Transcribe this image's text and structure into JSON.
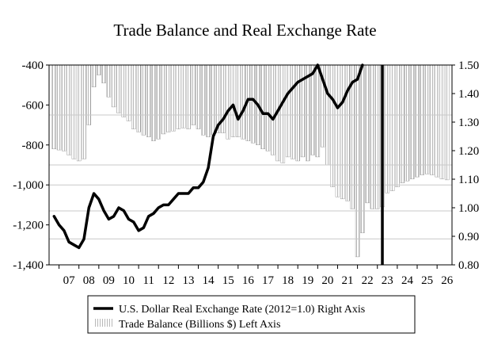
{
  "chart_data": {
    "type": "bar+line",
    "title": "Trade Balance and Real Exchange Rate",
    "x_labels": [
      "07",
      "08",
      "09",
      "10",
      "11",
      "12",
      "13",
      "14",
      "15",
      "16",
      "17",
      "18",
      "19",
      "20",
      "21",
      "22",
      "23",
      "24",
      "25",
      "26"
    ],
    "left_axis": {
      "min": -1400,
      "max": -400,
      "ticks": [
        -400,
        -600,
        -800,
        -1000,
        -1200,
        -1400
      ],
      "tick_labels": [
        "-400",
        "-600",
        "-800",
        "-1,000",
        "-1,200",
        "-1,400"
      ]
    },
    "right_axis": {
      "min": 0.8,
      "max": 1.5,
      "ticks": [
        1.5,
        1.4,
        1.3,
        1.2,
        1.1,
        1.0,
        0.9,
        0.8
      ],
      "tick_labels": [
        "1.50",
        "1.40",
        "1.30",
        "1.20",
        "1.10",
        "1.00",
        "0.90",
        "0.80"
      ]
    },
    "gridlines": [
      -650,
      -900,
      -1000,
      -1130,
      -1270
    ],
    "forecast_marker_x": 2023.25,
    "bar_series": {
      "name": "Trade Balance (Billions $) Left Axis",
      "axis": "left",
      "start_year": 2006.75,
      "step": 0.25,
      "values": [
        -820,
        -825,
        -830,
        -850,
        -870,
        -880,
        -870,
        -700,
        -510,
        -450,
        -490,
        -560,
        -610,
        -640,
        -660,
        -680,
        -720,
        -735,
        -750,
        -760,
        -780,
        -770,
        -745,
        -735,
        -730,
        -720,
        -715,
        -720,
        -700,
        -720,
        -750,
        -760,
        -750,
        -740,
        -740,
        -770,
        -760,
        -760,
        -770,
        -780,
        -790,
        -800,
        -820,
        -830,
        -850,
        -880,
        -890,
        -860,
        -870,
        -880,
        -860,
        -880,
        -850,
        -860,
        -810,
        -900,
        -1010,
        -1060,
        -1070,
        -1080,
        -1120,
        -1360,
        -1240,
        -1090,
        -1120,
        -1120,
        -1110,
        -1040,
        -1030,
        -1010,
        -990,
        -980,
        -970,
        -960,
        -950,
        -945,
        -950,
        -960,
        -970,
        -975
      ]
    },
    "line_series": {
      "name": "U.S. Dollar Real Exchange Rate (2012=1.0) Right Axis",
      "axis": "right",
      "points": [
        [
          2006.75,
          0.97
        ],
        [
          2007.0,
          0.94
        ],
        [
          2007.25,
          0.92
        ],
        [
          2007.5,
          0.88
        ],
        [
          2007.75,
          0.87
        ],
        [
          2008.0,
          0.86
        ],
        [
          2008.25,
          0.89
        ],
        [
          2008.5,
          1.0
        ],
        [
          2008.75,
          1.05
        ],
        [
          2009.0,
          1.03
        ],
        [
          2009.25,
          0.99
        ],
        [
          2009.5,
          0.96
        ],
        [
          2009.75,
          0.97
        ],
        [
          2010.0,
          1.0
        ],
        [
          2010.25,
          0.99
        ],
        [
          2010.5,
          0.96
        ],
        [
          2010.75,
          0.95
        ],
        [
          2011.0,
          0.92
        ],
        [
          2011.25,
          0.93
        ],
        [
          2011.5,
          0.97
        ],
        [
          2011.75,
          0.98
        ],
        [
          2012.0,
          1.0
        ],
        [
          2012.25,
          1.01
        ],
        [
          2012.5,
          1.01
        ],
        [
          2012.75,
          1.03
        ],
        [
          2013.0,
          1.05
        ],
        [
          2013.25,
          1.05
        ],
        [
          2013.5,
          1.05
        ],
        [
          2013.75,
          1.07
        ],
        [
          2014.0,
          1.07
        ],
        [
          2014.25,
          1.09
        ],
        [
          2014.5,
          1.14
        ],
        [
          2014.75,
          1.25
        ],
        [
          2015.0,
          1.29
        ],
        [
          2015.25,
          1.31
        ],
        [
          2015.5,
          1.34
        ],
        [
          2015.75,
          1.36
        ],
        [
          2016.0,
          1.31
        ],
        [
          2016.25,
          1.34
        ],
        [
          2016.5,
          1.38
        ],
        [
          2016.75,
          1.38
        ],
        [
          2017.0,
          1.36
        ],
        [
          2017.25,
          1.33
        ],
        [
          2017.5,
          1.33
        ],
        [
          2017.75,
          1.31
        ],
        [
          2018.0,
          1.34
        ],
        [
          2018.25,
          1.37
        ],
        [
          2018.5,
          1.4
        ],
        [
          2018.75,
          1.42
        ],
        [
          2019.0,
          1.44
        ],
        [
          2019.25,
          1.45
        ],
        [
          2019.5,
          1.46
        ],
        [
          2019.75,
          1.47
        ],
        [
          2020.0,
          1.5
        ],
        [
          2020.25,
          1.45
        ],
        [
          2020.5,
          1.4
        ],
        [
          2020.75,
          1.38
        ],
        [
          2021.0,
          1.35
        ],
        [
          2021.25,
          1.37
        ],
        [
          2021.5,
          1.41
        ],
        [
          2021.75,
          1.44
        ],
        [
          2022.0,
          1.45
        ],
        [
          2022.25,
          1.5
        ]
      ]
    },
    "legend": [
      "U.S. Dollar Real Exchange Rate (2012=1.0) Right Axis",
      "Trade Balance (Billions $) Left Axis"
    ]
  }
}
